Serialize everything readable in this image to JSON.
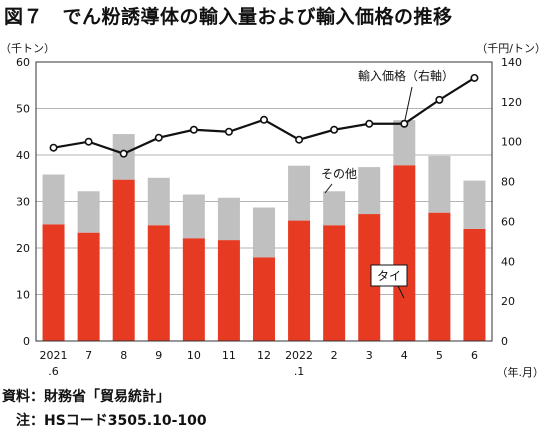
{
  "title": "図７　でん粉誘導体の輸入量および輸入価格の推移",
  "source": "資料：財務省「貿易統計」",
  "note": "　注：HSコード3505.10-100",
  "colors": {
    "thai": "#e63a22",
    "other": "#c0c0c0",
    "price": "#111111",
    "grid": "#9a9a9a"
  },
  "chart_data": {
    "type": "bar",
    "categories": [
      "2021\n.6",
      "7",
      "8",
      "9",
      "10",
      "11",
      "12",
      "2022\n.1",
      "2",
      "3",
      "4",
      "5",
      "6"
    ],
    "series": [
      {
        "name": "タイ",
        "type": "bar",
        "axis": "left",
        "stacked": true,
        "values": [
          25.1,
          23.3,
          34.7,
          24.9,
          22.1,
          21.7,
          18.0,
          25.9,
          24.9,
          27.3,
          37.8,
          27.6,
          24.1
        ]
      },
      {
        "name": "その他",
        "type": "bar",
        "axis": "left",
        "stacked": true,
        "values": [
          10.7,
          8.9,
          9.8,
          10.2,
          9.4,
          9.1,
          10.7,
          11.8,
          7.3,
          10.1,
          9.7,
          12.2,
          10.4
        ]
      },
      {
        "name": "輸入価格（右軸）",
        "type": "line",
        "axis": "right",
        "values": [
          97,
          100,
          94,
          102,
          106,
          105,
          111,
          101,
          106,
          109,
          109,
          121,
          132
        ]
      }
    ],
    "y_left": {
      "label": "（千トン）",
      "ylim": [
        0,
        60
      ],
      "ticks": [
        0,
        10,
        20,
        30,
        40,
        50,
        60
      ]
    },
    "y_right": {
      "label": "（千円/トン）",
      "ylim": [
        0,
        140
      ],
      "ticks": [
        0,
        20,
        40,
        60,
        80,
        100,
        120,
        140
      ]
    },
    "x_unit": "（年.月）",
    "grid": "horizontal",
    "annotations": {
      "price": "輸入価格（右軸）",
      "other": "その他",
      "thai": "タイ"
    }
  }
}
